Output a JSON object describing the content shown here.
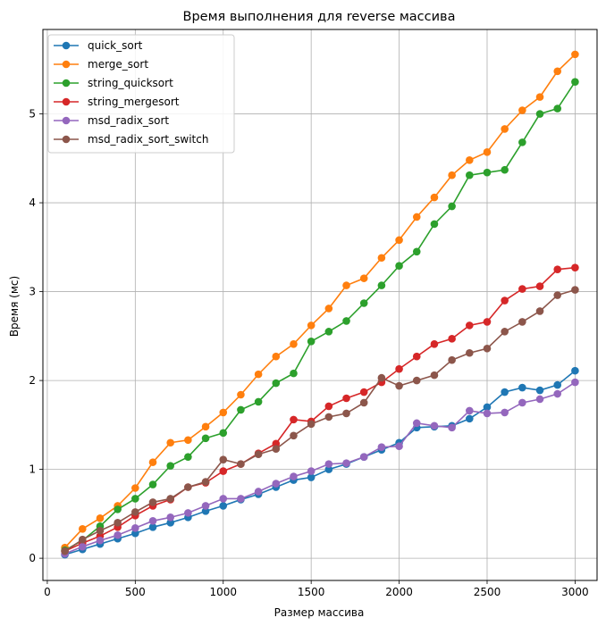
{
  "chart_data": {
    "type": "line",
    "title": "Время выполнения для reverse массива",
    "xlabel": "Размер массива",
    "ylabel": "Время (мс)",
    "xlim": [
      -25,
      3125
    ],
    "ylim": [
      -0.25,
      5.95
    ],
    "xticks": [
      0,
      500,
      1000,
      1500,
      2000,
      2500,
      3000
    ],
    "yticks": [
      0,
      1,
      2,
      3,
      4,
      5
    ],
    "grid": true,
    "legend": "top-left",
    "x": [
      100,
      200,
      300,
      400,
      500,
      600,
      700,
      800,
      900,
      1000,
      1100,
      1200,
      1300,
      1400,
      1500,
      1600,
      1700,
      1800,
      1900,
      2000,
      2100,
      2200,
      2300,
      2400,
      2500,
      2600,
      2700,
      2800,
      2900,
      3000
    ],
    "series": [
      {
        "name": "quick_sort",
        "color": "#1f77b4",
        "values": [
          0.04,
          0.1,
          0.16,
          0.22,
          0.28,
          0.35,
          0.4,
          0.46,
          0.53,
          0.59,
          0.66,
          0.72,
          0.8,
          0.88,
          0.91,
          1.0,
          1.06,
          1.14,
          1.22,
          1.3,
          1.47,
          1.48,
          1.49,
          1.57,
          1.7,
          1.87,
          1.92,
          1.89,
          1.95,
          2.11
        ]
      },
      {
        "name": "merge_sort",
        "color": "#ff7f0e",
        "values": [
          0.12,
          0.33,
          0.45,
          0.59,
          0.79,
          1.08,
          1.3,
          1.33,
          1.48,
          1.64,
          1.84,
          2.07,
          2.27,
          2.41,
          2.62,
          2.81,
          3.07,
          3.15,
          3.38,
          3.58,
          3.84,
          4.06,
          4.31,
          4.48,
          4.57,
          4.83,
          5.04,
          5.19,
          5.48,
          5.67
        ]
      },
      {
        "name": "string_quicksort",
        "color": "#2ca02c",
        "values": [
          0.09,
          0.2,
          0.36,
          0.55,
          0.67,
          0.83,
          1.04,
          1.14,
          1.35,
          1.41,
          1.67,
          1.76,
          1.97,
          2.08,
          2.44,
          2.55,
          2.67,
          2.87,
          3.07,
          3.29,
          3.45,
          3.76,
          3.96,
          4.31,
          4.34,
          4.37,
          4.68,
          5.0,
          5.06,
          5.36
        ]
      },
      {
        "name": "string_mergesort",
        "color": "#d62728",
        "values": [
          0.08,
          0.17,
          0.25,
          0.35,
          0.48,
          0.59,
          0.66,
          0.8,
          0.85,
          0.98,
          1.06,
          1.18,
          1.29,
          1.56,
          1.54,
          1.71,
          1.8,
          1.87,
          1.98,
          2.13,
          2.27,
          2.41,
          2.47,
          2.62,
          2.66,
          2.9,
          3.03,
          3.06,
          3.25,
          3.27
        ]
      },
      {
        "name": "msd_radix_sort",
        "color": "#9467bd",
        "values": [
          0.05,
          0.13,
          0.2,
          0.26,
          0.34,
          0.42,
          0.46,
          0.51,
          0.59,
          0.67,
          0.67,
          0.75,
          0.84,
          0.92,
          0.98,
          1.06,
          1.07,
          1.14,
          1.25,
          1.26,
          1.52,
          1.49,
          1.47,
          1.66,
          1.63,
          1.64,
          1.75,
          1.79,
          1.85,
          1.98
        ]
      },
      {
        "name": "msd_radix_sort_switch",
        "color": "#8c564b",
        "values": [
          0.08,
          0.21,
          0.31,
          0.4,
          0.52,
          0.63,
          0.67,
          0.8,
          0.86,
          1.11,
          1.06,
          1.17,
          1.23,
          1.38,
          1.51,
          1.59,
          1.63,
          1.75,
          2.03,
          1.94,
          2.0,
          2.06,
          2.23,
          2.31,
          2.36,
          2.55,
          2.66,
          2.78,
          2.96,
          3.02
        ]
      }
    ]
  }
}
